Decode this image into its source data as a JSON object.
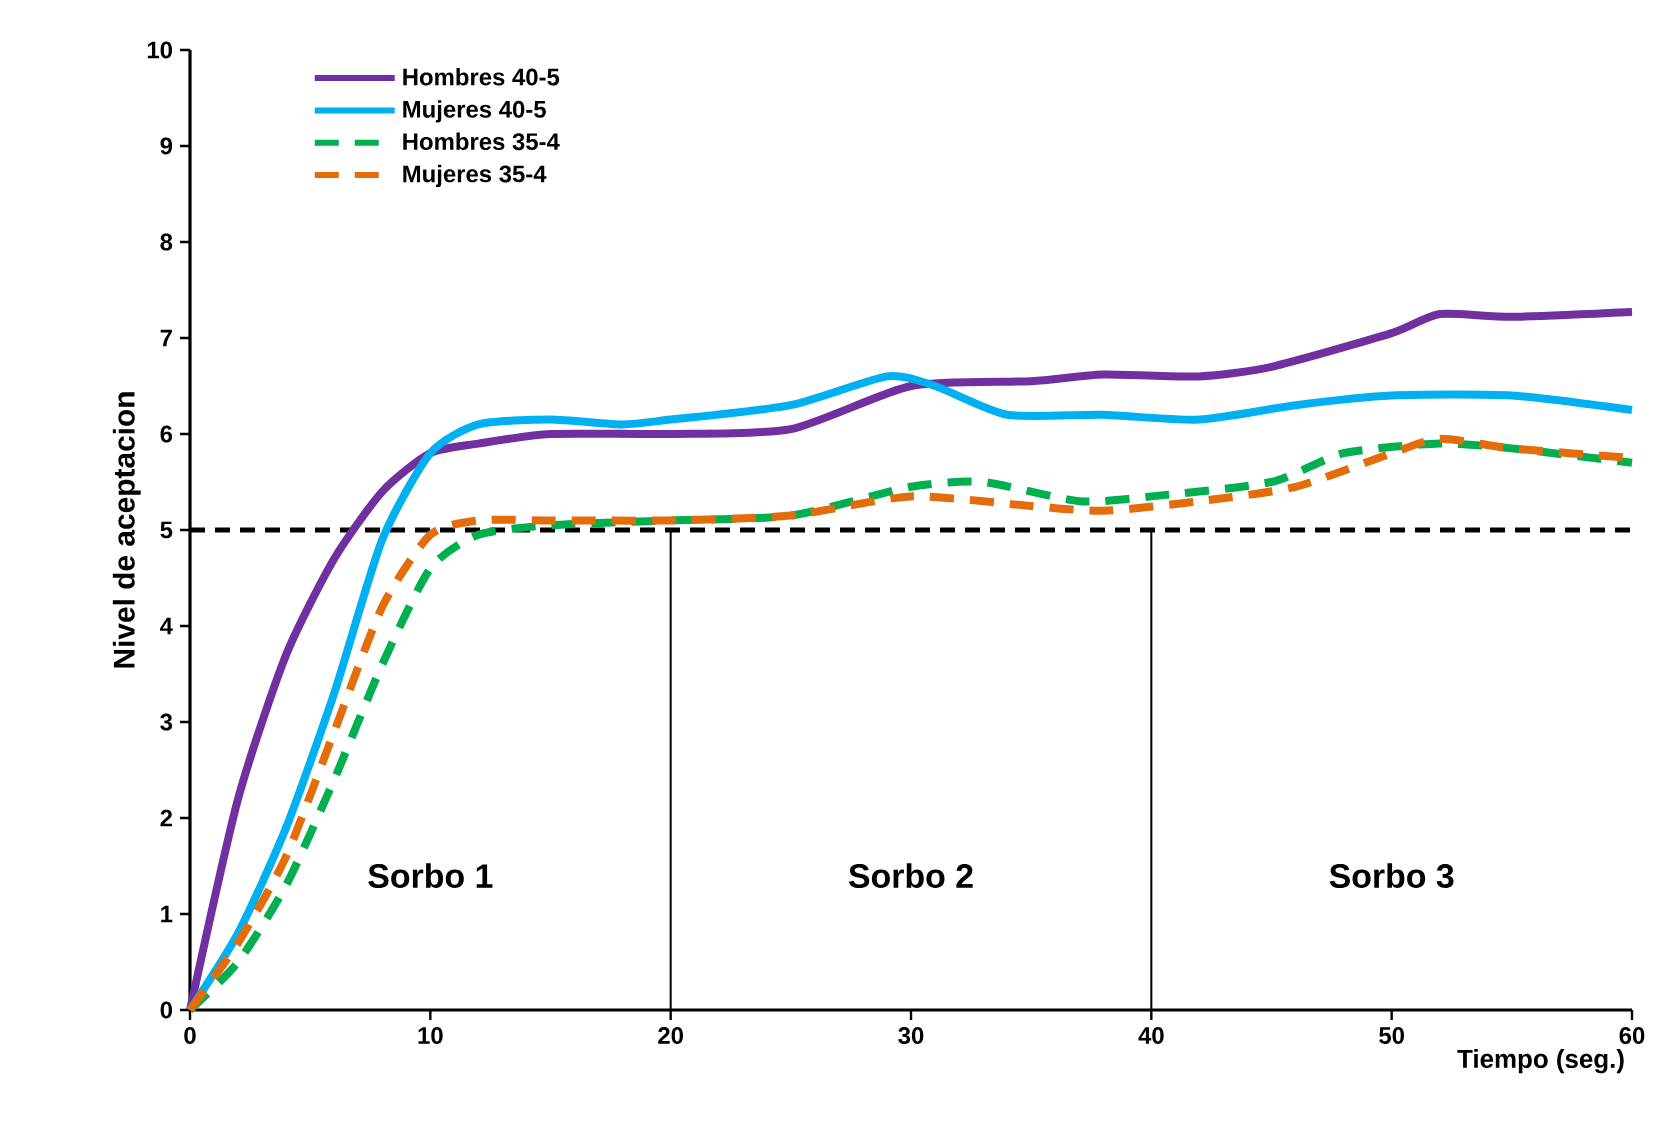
{
  "chart_data": {
    "type": "line",
    "xlabel": "Tiempo (seg.)",
    "ylabel": "Nivel de aceptacion",
    "xlim": [
      0,
      60
    ],
    "xticks": [
      0,
      10,
      20,
      30,
      40,
      50,
      60
    ],
    "ylim": [
      0,
      10
    ],
    "yticks": [
      0,
      1,
      2,
      3,
      4,
      5,
      6,
      7,
      8,
      9,
      10
    ],
    "grid": false,
    "legend": "top left",
    "marker": "none",
    "series": [
      {
        "name": "Hombres 40-5",
        "color": "#7030a0",
        "line_style": "solid",
        "x": [
          0,
          2,
          4,
          6,
          8,
          10,
          12,
          15,
          20,
          25,
          30,
          35,
          38,
          42,
          45,
          50,
          52,
          55,
          60
        ],
        "values": [
          0,
          2.2,
          3.7,
          4.7,
          5.4,
          5.8,
          5.9,
          6.0,
          6.0,
          6.05,
          6.5,
          6.55,
          6.62,
          6.6,
          6.7,
          7.05,
          7.25,
          7.22,
          7.27
        ]
      },
      {
        "name": "Mujeres 40-5",
        "color": "#00b0f0",
        "line_style": "solid",
        "x": [
          0,
          2,
          4,
          6,
          8,
          10,
          12,
          15,
          18,
          20,
          25,
          29,
          31,
          34,
          38,
          42,
          46,
          50,
          55,
          60
        ],
        "values": [
          0,
          0.8,
          1.9,
          3.3,
          4.9,
          5.8,
          6.1,
          6.15,
          6.1,
          6.15,
          6.3,
          6.6,
          6.5,
          6.2,
          6.2,
          6.15,
          6.3,
          6.4,
          6.4,
          6.25
        ]
      },
      {
        "name": "Hombres 35-4",
        "color": "#00b050",
        "line_style": "dashed",
        "x": [
          0,
          2,
          4,
          6,
          8,
          10,
          12,
          15,
          20,
          25,
          30,
          33,
          37,
          40,
          45,
          48,
          52,
          55,
          60
        ],
        "values": [
          0,
          0.5,
          1.3,
          2.4,
          3.6,
          4.6,
          4.95,
          5.05,
          5.1,
          5.15,
          5.45,
          5.5,
          5.3,
          5.35,
          5.5,
          5.8,
          5.9,
          5.85,
          5.7
        ]
      },
      {
        "name": "Mujeres 35-4",
        "color": "#e46c0a",
        "line_style": "dashed",
        "x": [
          0,
          2,
          4,
          6,
          8,
          10,
          12,
          15,
          20,
          25,
          30,
          35,
          38,
          42,
          46,
          50,
          52,
          55,
          60
        ],
        "values": [
          0,
          0.7,
          1.6,
          2.9,
          4.2,
          4.95,
          5.1,
          5.1,
          5.1,
          5.15,
          5.35,
          5.25,
          5.2,
          5.3,
          5.45,
          5.8,
          5.95,
          5.85,
          5.75
        ]
      }
    ],
    "ref_lines": [
      {
        "axis": "y",
        "value": 5,
        "color": "#000000",
        "line_style": "dashed"
      },
      {
        "axis": "x",
        "value": 20,
        "color": "#000000",
        "line_style": "solid"
      },
      {
        "axis": "x",
        "value": 40,
        "color": "#000000",
        "line_style": "solid"
      }
    ],
    "annotations": [
      "Sorbo 1",
      "Sorbo 2",
      "Sorbo 3"
    ]
  }
}
